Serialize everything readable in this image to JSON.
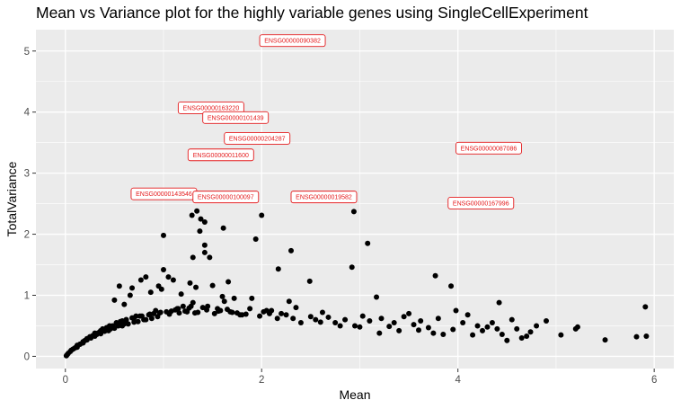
{
  "chart_data": {
    "type": "scatter",
    "title": "Mean vs Variance plot for the highly variable genes using SingleCellExperiment",
    "xlabel": "Mean",
    "ylabel": "TotalVariance",
    "xlim": [
      -0.3,
      6.2
    ],
    "ylim": [
      -0.2,
      5.35
    ],
    "xticks": [
      0,
      2,
      4,
      6
    ],
    "yticks": [
      0,
      1,
      2,
      3,
      4,
      5
    ],
    "grid": true,
    "colors": {
      "panel": "#ebebeb",
      "grid": "#ffffff",
      "point": "#000000",
      "label": "#e41a1c"
    },
    "labels": [
      {
        "text": "ENSG00000090382",
        "x": 1.98,
        "y": 5.17
      },
      {
        "text": "ENSG00000163220",
        "x": 1.15,
        "y": 4.07
      },
      {
        "text": "ENSG00000101439",
        "x": 1.4,
        "y": 3.91
      },
      {
        "text": "ENSG00000204287",
        "x": 1.62,
        "y": 3.57
      },
      {
        "text": "ENSG00000011600",
        "x": 1.25,
        "y": 3.3
      },
      {
        "text": "ENSG00000087086",
        "x": 3.98,
        "y": 3.41
      },
      {
        "text": "ENSG00000143546",
        "x": 0.67,
        "y": 2.66
      },
      {
        "text": "ENSG00000100097",
        "x": 1.3,
        "y": 2.61
      },
      {
        "text": "ENSG00000019582",
        "x": 2.3,
        "y": 2.61
      },
      {
        "text": "ENSG00000167996",
        "x": 3.9,
        "y": 2.51
      }
    ],
    "x": [
      1.0,
      1.29,
      1.34,
      1.38,
      1.42,
      2.0,
      1.37,
      1.42,
      1.61,
      1.94,
      2.94,
      1.47,
      2.17,
      2.3,
      3.08,
      1.42,
      2.92,
      3.93,
      1.66,
      3.77,
      1.3,
      2.49,
      1.33,
      3.17,
      5.91,
      1.0,
      1.05,
      0.98,
      1.18,
      1.27,
      1.1,
      1.5,
      1.72,
      0.95,
      0.87,
      0.82,
      0.77,
      0.68,
      0.66,
      0.55,
      0.5,
      0.6,
      1.2,
      1.3,
      1.55,
      1.62,
      1.7,
      1.8,
      2.05,
      2.2,
      2.35,
      2.5,
      2.62,
      2.85,
      3.03,
      3.22,
      3.35,
      3.5,
      3.62,
      3.8,
      3.98,
      4.2,
      4.35,
      4.42,
      4.55,
      4.6,
      4.74,
      4.9,
      5.05,
      5.22,
      5.5,
      5.82,
      5.92,
      4.1,
      4.3,
      4.5,
      3.6,
      3.2,
      2.75,
      2.55,
      2.28,
      2.1,
      1.9,
      1.6,
      1.45,
      1.15,
      0.92,
      0.72,
      0.58,
      0.45,
      0.38,
      0.3,
      0.25,
      0.2,
      0.15,
      0.1,
      0.05,
      0.02,
      0.01,
      0.03,
      0.06,
      0.08,
      0.12,
      0.18,
      0.22,
      0.28,
      0.33,
      0.36,
      0.42,
      0.48,
      0.52,
      0.56,
      0.62,
      0.7,
      0.76,
      0.85,
      0.9,
      0.97,
      1.03,
      1.08,
      1.12,
      1.22,
      1.26,
      1.35,
      1.4,
      1.52,
      1.58,
      1.65,
      1.75,
      1.84,
      1.98,
      2.02,
      2.16,
      2.25,
      2.4,
      2.68,
      2.95,
      3.1,
      3.3,
      3.45,
      3.55,
      3.7,
      3.85,
      3.95,
      4.05,
      4.25,
      4.45,
      4.65,
      4.8,
      5.2,
      0.15,
      0.22,
      0.3,
      0.36,
      0.44,
      0.5,
      0.58,
      0.64,
      0.74,
      0.8,
      0.88,
      0.94,
      1.06,
      1.16,
      1.24,
      1.32,
      1.44,
      1.56,
      1.68,
      1.78,
      1.88,
      2.08,
      2.32,
      2.6,
      2.8,
      3.0,
      3.4,
      3.75,
      4.15,
      4.4,
      4.7,
      0.35,
      0.42,
      0.52,
      0.62,
      0.68,
      0.78,
      0.86,
      0.96,
      1.14,
      1.28,
      0.12,
      0.18,
      0.26,
      0.32,
      0.4,
      0.46,
      0.54,
      0.6,
      0.7,
      0.82
    ],
    "y": [
      1.98,
      2.31,
      2.38,
      2.25,
      2.2,
      2.31,
      2.05,
      1.82,
      2.1,
      1.92,
      2.37,
      1.62,
      1.43,
      1.73,
      1.85,
      1.7,
      1.46,
      1.15,
      1.22,
      1.32,
      1.62,
      1.23,
      1.13,
      0.97,
      0.81,
      1.42,
      1.3,
      1.1,
      1.02,
      1.2,
      1.25,
      1.16,
      0.95,
      1.15,
      1.05,
      1.3,
      1.25,
      1.12,
      1.0,
      1.15,
      0.92,
      0.85,
      0.82,
      0.88,
      0.78,
      0.9,
      0.72,
      0.68,
      0.75,
      0.7,
      0.8,
      0.65,
      0.72,
      0.6,
      0.66,
      0.62,
      0.55,
      0.7,
      0.58,
      0.62,
      0.75,
      0.5,
      0.55,
      0.88,
      0.6,
      0.45,
      0.4,
      0.58,
      0.35,
      0.48,
      0.27,
      0.32,
      0.33,
      0.68,
      0.48,
      0.26,
      0.43,
      0.38,
      0.55,
      0.6,
      0.9,
      0.75,
      0.95,
      0.98,
      0.82,
      0.78,
      0.75,
      0.66,
      0.58,
      0.5,
      0.45,
      0.38,
      0.32,
      0.26,
      0.2,
      0.14,
      0.08,
      0.03,
      0.01,
      0.05,
      0.1,
      0.12,
      0.18,
      0.24,
      0.29,
      0.34,
      0.38,
      0.42,
      0.46,
      0.5,
      0.54,
      0.57,
      0.6,
      0.63,
      0.66,
      0.68,
      0.7,
      0.72,
      0.73,
      0.74,
      0.76,
      0.74,
      0.79,
      0.72,
      0.8,
      0.7,
      0.75,
      0.77,
      0.71,
      0.69,
      0.66,
      0.73,
      0.62,
      0.68,
      0.55,
      0.64,
      0.5,
      0.58,
      0.49,
      0.65,
      0.52,
      0.47,
      0.36,
      0.44,
      0.55,
      0.42,
      0.36,
      0.3,
      0.5,
      0.45,
      0.2,
      0.27,
      0.33,
      0.37,
      0.42,
      0.46,
      0.5,
      0.53,
      0.57,
      0.6,
      0.62,
      0.65,
      0.69,
      0.71,
      0.73,
      0.71,
      0.76,
      0.74,
      0.73,
      0.68,
      0.78,
      0.7,
      0.62,
      0.56,
      0.5,
      0.48,
      0.42,
      0.38,
      0.35,
      0.45,
      0.33,
      0.4,
      0.47,
      0.55,
      0.6,
      0.63,
      0.66,
      0.69,
      0.71,
      0.78,
      0.82,
      0.15,
      0.22,
      0.3,
      0.36,
      0.41,
      0.45,
      0.5,
      0.53,
      0.56,
      0.6
    ]
  }
}
